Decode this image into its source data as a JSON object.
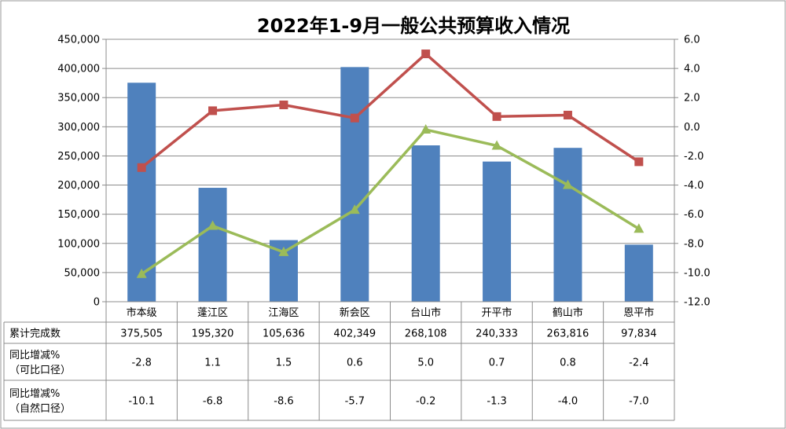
{
  "chart_data": {
    "type": "bar",
    "title": "2022年1-9月一般公共预算收入情况",
    "categories": [
      "市本级",
      "蓬江区",
      "江海区",
      "新会区",
      "台山市",
      "开平市",
      "鹤山市",
      "恩平市"
    ],
    "series": [
      {
        "name": "累计完成数",
        "chart": "bar",
        "axis": "left",
        "color": "#4f81bd",
        "values": [
          375505,
          195320,
          105636,
          402349,
          268108,
          240333,
          263816,
          97834
        ],
        "display": [
          "375,505",
          "195,320",
          "105,636",
          "402,349",
          "268,108",
          "240,333",
          "263,816",
          "97,834"
        ]
      },
      {
        "name": [
          "同比增减%",
          "（可比口径）"
        ],
        "chart": "line",
        "marker": "square",
        "axis": "right",
        "color": "#c0504d",
        "values": [
          -2.8,
          1.1,
          1.5,
          0.6,
          5.0,
          0.7,
          0.8,
          -2.4
        ],
        "display": [
          "-2.8",
          "1.1",
          "1.5",
          "0.6",
          "5.0",
          "0.7",
          "0.8",
          "-2.4"
        ]
      },
      {
        "name": [
          "同比增减%",
          "（自然口径）"
        ],
        "chart": "line",
        "marker": "triangle",
        "axis": "right",
        "color": "#9bbb59",
        "values": [
          -10.1,
          -6.8,
          -8.6,
          -5.7,
          -0.2,
          -1.3,
          -4.0,
          -7.0
        ],
        "display": [
          "-10.1",
          "-6.8",
          "-8.6",
          "-5.7",
          "-0.2",
          "-1.3",
          "-4.0",
          "-7.0"
        ]
      }
    ],
    "y_left": {
      "range": [
        0,
        450000
      ],
      "ticks": [
        "450,000",
        "400,000",
        "350,000",
        "300,000",
        "250,000",
        "200,000",
        "150,000",
        "100,000",
        "50,000",
        "0"
      ]
    },
    "y_right": {
      "range": [
        -12.0,
        6.0
      ],
      "ticks": [
        "6.0",
        "4.0",
        "2.0",
        "0.0",
        "-2.0",
        "-4.0",
        "-6.0",
        "-8.0",
        "-10.0",
        "-12.0"
      ]
    },
    "grid": true,
    "legend": "data table below chart"
  }
}
